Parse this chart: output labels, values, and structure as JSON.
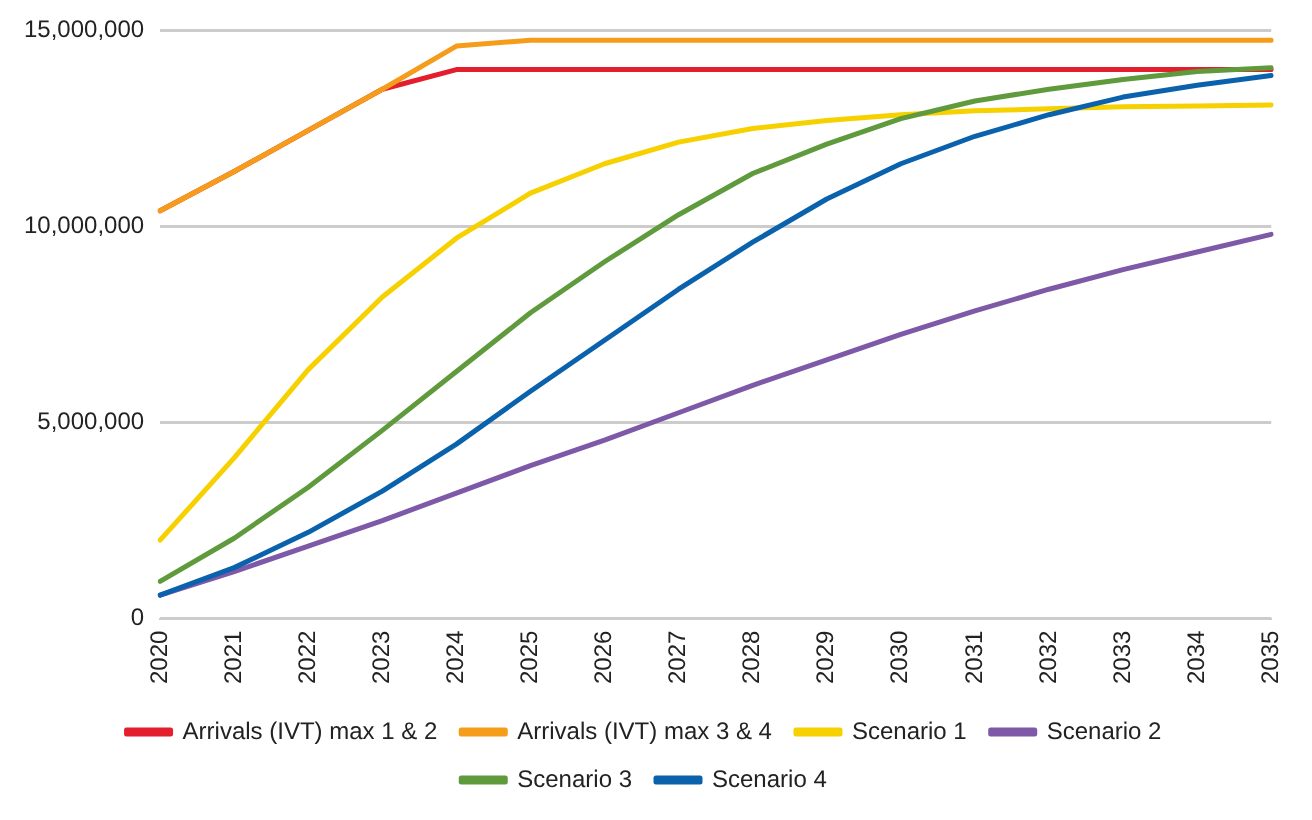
{
  "chart_data": {
    "type": "line",
    "categories": [
      "2020",
      "2021",
      "2022",
      "2023",
      "2024",
      "2025",
      "2026",
      "2027",
      "2028",
      "2029",
      "2030",
      "2031",
      "2032",
      "2033",
      "2034",
      "2035"
    ],
    "ylim": [
      0,
      15000000
    ],
    "yticks": [
      0,
      {
        "value": 5000000,
        "label": "5,000,000"
      },
      {
        "value": 10000000,
        "label": "10,000,000"
      },
      {
        "value": 15000000,
        "label": "15,000,000"
      }
    ],
    "grid": "y",
    "legend": "bottom",
    "marker": "none",
    "line_style": "solid",
    "series": [
      {
        "name": "Arrivals (IVT) max 1 & 2",
        "color": "#e31e2d",
        "values": [
          10400000,
          11400000,
          12450000,
          13500000,
          14000000,
          14000000,
          14000000,
          14000000,
          14000000,
          14000000,
          14000000,
          14000000,
          14000000,
          14000000,
          14000000,
          14000000
        ]
      },
      {
        "name": "Arrivals (IVT) max 3 & 4",
        "color": "#f59c1a",
        "values": [
          10400000,
          11400000,
          12450000,
          13500000,
          14600000,
          14750000,
          14750000,
          14750000,
          14750000,
          14750000,
          14750000,
          14750000,
          14750000,
          14750000,
          14750000,
          14750000
        ]
      },
      {
        "name": "Scenario 1",
        "color": "#f7d000",
        "values": [
          2000000,
          4100000,
          6350000,
          8200000,
          9700000,
          10850000,
          11600000,
          12150000,
          12500000,
          12700000,
          12850000,
          12950000,
          13000000,
          13050000,
          13070000,
          13100000
        ]
      },
      {
        "name": "Scenario 2",
        "color": "#7d59a8",
        "values": [
          600000,
          1200000,
          1850000,
          2500000,
          3200000,
          3900000,
          4550000,
          5250000,
          5950000,
          6600000,
          7250000,
          7850000,
          8400000,
          8900000,
          9350000,
          9800000
        ]
      },
      {
        "name": "Scenario 3",
        "color": "#5f9a3c",
        "values": [
          950000,
          2050000,
          3350000,
          4800000,
          6300000,
          7800000,
          9100000,
          10300000,
          11350000,
          12100000,
          12750000,
          13200000,
          13500000,
          13750000,
          13950000,
          14050000
        ]
      },
      {
        "name": "Scenario 4",
        "color": "#0a62ad",
        "values": [
          600000,
          1300000,
          2200000,
          3250000,
          4450000,
          5800000,
          7100000,
          8400000,
          9600000,
          10700000,
          11600000,
          12300000,
          12850000,
          13300000,
          13600000,
          13850000
        ]
      }
    ]
  }
}
